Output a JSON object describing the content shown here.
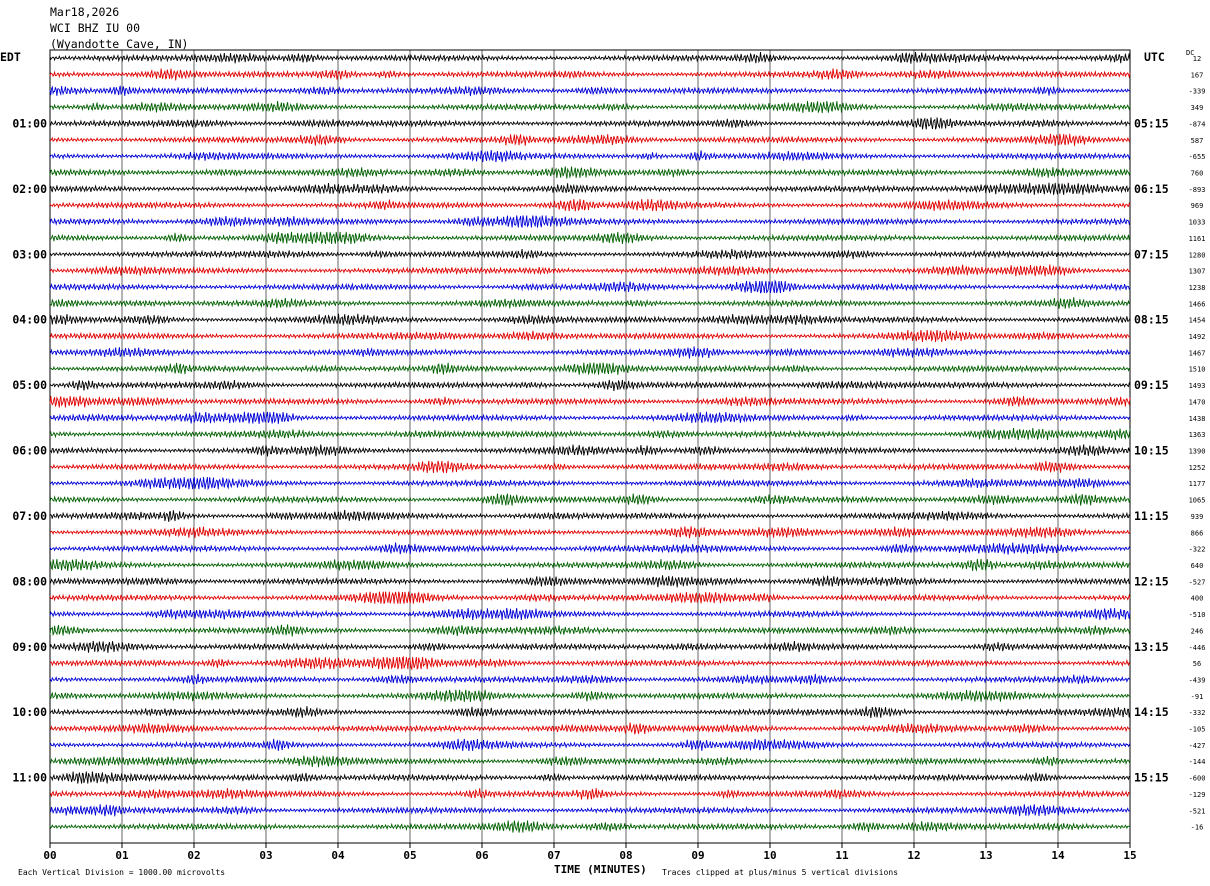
{
  "header": {
    "date": "Mar18,2026",
    "station": "WCI BHZ IU 00",
    "location": "(Wyandotte Cave, IN)"
  },
  "labels": {
    "left_tz": "EDT",
    "right_tz": "UTC",
    "dc": "DC",
    "xlabel": "TIME (MINUTES)",
    "scale_note": "Each Vertical Division = 1000.00 microvolts",
    "clip_note": "Traces clipped at plus/minus 5 vertical divisions"
  },
  "colors": {
    "trace_cycle": [
      "#000000",
      "#e00000",
      "#0000d8",
      "#006000"
    ],
    "grid": "#000000"
  },
  "chart_data": {
    "type": "line",
    "x_ticks": [
      "00",
      "01",
      "02",
      "03",
      "04",
      "05",
      "06",
      "07",
      "08",
      "09",
      "10",
      "11",
      "12",
      "13",
      "14",
      "15"
    ],
    "xlim": [
      0,
      15
    ],
    "trace_count": 48,
    "left_hour_labels": [
      "01:00",
      "02:00",
      "03:00",
      "04:00",
      "05:00",
      "06:00",
      "07:00",
      "08:00",
      "09:00",
      "10:00",
      "11:00"
    ],
    "right_hour_labels": [
      "05:15",
      "06:15",
      "07:15",
      "08:15",
      "09:15",
      "10:15",
      "11:15",
      "12:15",
      "13:15",
      "14:15",
      "15:15"
    ],
    "dc_offsets": [
      "12",
      "167",
      "-339",
      "349",
      "-874",
      "587",
      "-655",
      "760",
      "-893",
      "969",
      "1033",
      "1161",
      "1280",
      "1307",
      "1238",
      "1466",
      "1454",
      "1492",
      "1467",
      "1510",
      "1493",
      "1470",
      "1438",
      "1363",
      "1390",
      "1252",
      "1177",
      "1065",
      "939",
      "866",
      "-322",
      "640",
      "-527",
      "400",
      "-510",
      "246",
      "-446",
      "56",
      "-439",
      "-91",
      "-332",
      "-105",
      "-427",
      "-144",
      "-600",
      "-129",
      "-521",
      "-16"
    ]
  }
}
